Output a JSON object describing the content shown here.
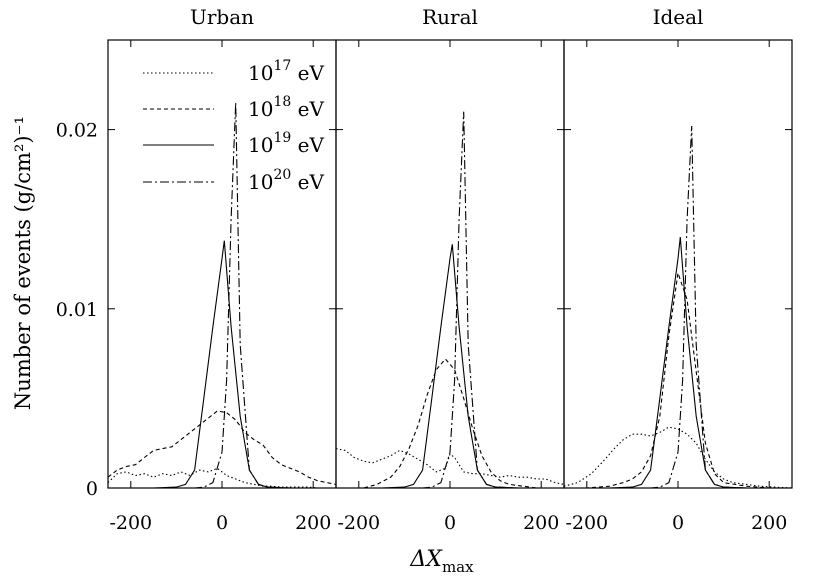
{
  "chart_data": {
    "type": "line",
    "ylabel": "Number of events (g/cm²)⁻¹",
    "xlabel": "ΔX",
    "xlabel_sub": "max",
    "ylim": [
      0,
      0.025
    ],
    "yticks": [
      {
        "v": 0,
        "label": "0"
      },
      {
        "v": 0.01,
        "label": "0.01"
      },
      {
        "v": 0.02,
        "label": "0.02"
      }
    ],
    "legend": {
      "placement": "top-left of first panel",
      "entries": [
        {
          "base": "10",
          "exp": "17",
          "unit": " eV",
          "style": "dotted"
        },
        {
          "base": "10",
          "exp": "18",
          "unit": " eV",
          "style": "dashed"
        },
        {
          "base": "10",
          "exp": "19",
          "unit": " eV",
          "style": "solid"
        },
        {
          "base": "10",
          "exp": "20",
          "unit": " eV",
          "style": "dashdot"
        }
      ]
    },
    "panels": [
      {
        "title": "Urban",
        "xlim": [
          -250,
          250
        ],
        "xticks": [
          {
            "v": -200,
            "label": "-200"
          },
          {
            "v": 0,
            "label": "0"
          },
          {
            "v": 200,
            "label": "200"
          }
        ],
        "series": [
          {
            "name": "10^17 eV",
            "x": [
              -250,
              -230,
              -210,
              -190,
              -170,
              -150,
              -130,
              -110,
              -90,
              -70,
              -50,
              -30,
              -10,
              10,
              30,
              50,
              70,
              90,
              110,
              130,
              150,
              170,
              190,
              210,
              230,
              250
            ],
            "y": [
              0.0003,
              0.0008,
              0.0009,
              0.0007,
              0.0008,
              0.0006,
              0.0008,
              0.0007,
              0.0009,
              0.0007,
              0.001,
              0.0009,
              0.0011,
              0.0007,
              0.0005,
              0.0003,
              0.0002,
              0.0001,
              0.0001,
              5e-05,
              5e-05,
              5e-05,
              5e-05,
              0,
              0,
              0
            ]
          },
          {
            "name": "10^18 eV",
            "x": [
              -250,
              -230,
              -210,
              -190,
              -170,
              -150,
              -130,
              -110,
              -90,
              -70,
              -50,
              -30,
              -10,
              10,
              30,
              50,
              70,
              90,
              110,
              130,
              150,
              170,
              190,
              210,
              230,
              250
            ],
            "y": [
              0.0006,
              0.001,
              0.0012,
              0.0013,
              0.0017,
              0.0021,
              0.0022,
              0.0023,
              0.0027,
              0.0031,
              0.0035,
              0.0039,
              0.0043,
              0.0042,
              0.0038,
              0.0031,
              0.0027,
              0.0024,
              0.0017,
              0.0013,
              0.0011,
              0.0009,
              0.0006,
              0.0004,
              0.0003,
              0.0002
            ]
          },
          {
            "name": "10^19 eV",
            "x": [
              -250,
              -200,
              -150,
              -100,
              -80,
              -60,
              -40,
              -20,
              0,
              5,
              20,
              40,
              60,
              80,
              100,
              150,
              200,
              250
            ],
            "y": [
              0,
              0,
              0,
              5e-05,
              0.0002,
              0.001,
              0.005,
              0.009,
              0.0128,
              0.0138,
              0.009,
              0.004,
              0.001,
              0.0002,
              5e-05,
              0,
              0,
              0
            ]
          },
          {
            "name": "10^20 eV",
            "x": [
              -250,
              -200,
              -150,
              -100,
              -60,
              -40,
              -20,
              0,
              10,
              20,
              30,
              40,
              60,
              80,
              100,
              150,
              200,
              250
            ],
            "y": [
              0,
              0,
              0,
              0,
              0,
              5e-05,
              0.0003,
              0.002,
              0.006,
              0.015,
              0.0215,
              0.008,
              0.001,
              0.0002,
              5e-05,
              0,
              0,
              0
            ]
          }
        ]
      },
      {
        "title": "Rural",
        "xlim": [
          -250,
          250
        ],
        "xticks": [
          {
            "v": -200,
            "label": "-200"
          },
          {
            "v": 0,
            "label": "0"
          },
          {
            "v": 200,
            "label": "200"
          }
        ],
        "series": [
          {
            "name": "10^17 eV",
            "x": [
              -250,
              -230,
              -210,
              -190,
              -170,
              -150,
              -130,
              -110,
              -90,
              -70,
              -50,
              -30,
              -10,
              0,
              10,
              30,
              50,
              70,
              90,
              110,
              130,
              150,
              170,
              190,
              210,
              230,
              250
            ],
            "y": [
              0.0022,
              0.0021,
              0.0017,
              0.0015,
              0.0014,
              0.0016,
              0.0018,
              0.0021,
              0.0019,
              0.0016,
              0.0013,
              0.0009,
              0.0011,
              0.0019,
              0.0017,
              0.0009,
              0.0008,
              0.0008,
              0.0007,
              0.0006,
              0.0007,
              0.0006,
              0.0006,
              0.0005,
              0.0005,
              0.0003,
              0.0002
            ]
          },
          {
            "name": "10^18 eV",
            "x": [
              -250,
              -220,
              -190,
              -160,
              -130,
              -110,
              -90,
              -70,
              -50,
              -30,
              -10,
              10,
              30,
              50,
              70,
              90,
              110,
              130,
              160,
              190,
              220,
              250
            ],
            "y": [
              0,
              0,
              0,
              0.0002,
              0.0006,
              0.0012,
              0.0022,
              0.0035,
              0.0052,
              0.0066,
              0.0072,
              0.0066,
              0.005,
              0.0033,
              0.0018,
              0.0009,
              0.0004,
              0.0002,
              0.0001,
              0,
              0,
              0
            ]
          },
          {
            "name": "10^19 eV",
            "x": [
              -250,
              -200,
              -150,
              -100,
              -80,
              -60,
              -40,
              -20,
              0,
              5,
              20,
              40,
              60,
              80,
              100,
              150,
              200,
              250
            ],
            "y": [
              0,
              0,
              0,
              5e-05,
              0.0002,
              0.001,
              0.005,
              0.009,
              0.0128,
              0.0136,
              0.009,
              0.004,
              0.001,
              0.0002,
              5e-05,
              0,
              0,
              0
            ]
          },
          {
            "name": "10^20 eV",
            "x": [
              -250,
              -200,
              -150,
              -100,
              -60,
              -40,
              -20,
              0,
              10,
              20,
              30,
              40,
              60,
              80,
              100,
              150,
              200,
              250
            ],
            "y": [
              0,
              0,
              0,
              0,
              0,
              5e-05,
              0.0003,
              0.002,
              0.006,
              0.015,
              0.021,
              0.008,
              0.001,
              0.0002,
              5e-05,
              0,
              0,
              0
            ]
          }
        ]
      },
      {
        "title": "Ideal",
        "xlim": [
          -250,
          250
        ],
        "xticks": [
          {
            "v": -200,
            "label": "-200"
          },
          {
            "v": 0,
            "label": "0"
          },
          {
            "v": 200,
            "label": "200"
          }
        ],
        "series": [
          {
            "name": "10^17 eV",
            "x": [
              -250,
              -220,
              -190,
              -160,
              -140,
              -120,
              -100,
              -80,
              -60,
              -40,
              -20,
              0,
              20,
              40,
              60,
              80,
              100,
              120,
              150,
              180,
              210,
              250
            ],
            "y": [
              0.0001,
              0.0003,
              0.0008,
              0.0016,
              0.0022,
              0.0027,
              0.003,
              0.003,
              0.0029,
              0.0031,
              0.0034,
              0.0033,
              0.003,
              0.0025,
              0.0016,
              0.0009,
              0.0005,
              0.0003,
              0.0002,
              0.0001,
              5e-05,
              0
            ]
          },
          {
            "name": "10^18 eV",
            "x": [
              -250,
              -200,
              -150,
              -120,
              -100,
              -80,
              -60,
              -40,
              -20,
              0,
              20,
              40,
              60,
              80,
              100,
              150,
              200,
              250
            ],
            "y": [
              0,
              0,
              0.0001,
              0.0003,
              0.0005,
              0.0009,
              0.0018,
              0.004,
              0.0085,
              0.012,
              0.0105,
              0.0065,
              0.0025,
              0.0008,
              0.0003,
              0.0001,
              0,
              0
            ]
          },
          {
            "name": "10^19 eV",
            "x": [
              -250,
              -200,
              -150,
              -100,
              -80,
              -60,
              -40,
              -20,
              0,
              5,
              20,
              40,
              60,
              80,
              100,
              150,
              200,
              250
            ],
            "y": [
              0,
              0,
              0,
              5e-05,
              0.0002,
              0.001,
              0.005,
              0.009,
              0.0128,
              0.014,
              0.009,
              0.004,
              0.001,
              0.0002,
              5e-05,
              0,
              0,
              0
            ]
          },
          {
            "name": "10^20 eV",
            "x": [
              -250,
              -200,
              -150,
              -100,
              -60,
              -40,
              -20,
              0,
              10,
              20,
              30,
              40,
              60,
              80,
              100,
              150,
              200,
              250
            ],
            "y": [
              0,
              0,
              0,
              0,
              0,
              5e-05,
              0.0003,
              0.002,
              0.006,
              0.015,
              0.0202,
              0.008,
              0.001,
              0.0002,
              5e-05,
              0,
              0,
              0
            ]
          }
        ]
      }
    ]
  }
}
